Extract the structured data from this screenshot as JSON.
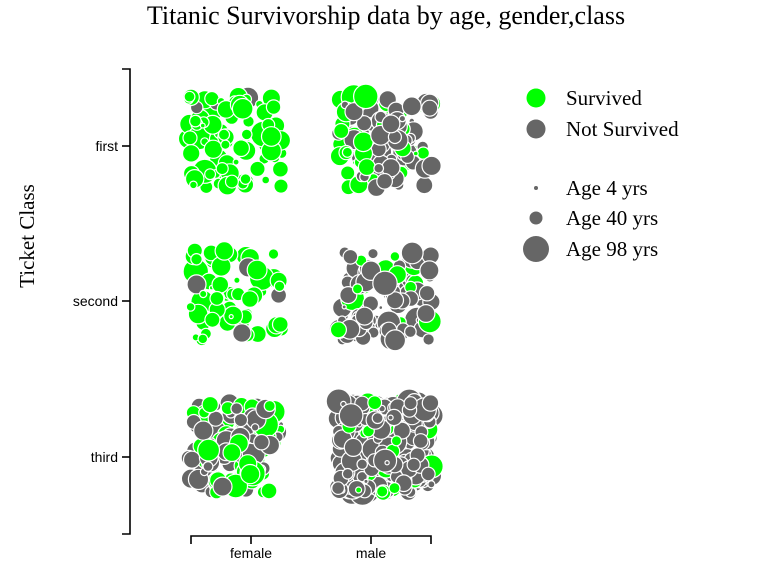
{
  "chart_data": {
    "type": "scatter",
    "title": "Titanic Survivorship data by age, gender,class",
    "ylabel": "Ticket Class",
    "xlabel": "",
    "x_categories": [
      "female",
      "male"
    ],
    "y_categories": [
      "first",
      "second",
      "third"
    ],
    "grid": false,
    "legend_position": "top-right",
    "colors": {
      "survived": "#00ff00",
      "not_survived": "#666666"
    },
    "series": [
      {
        "name": "Survived",
        "color": "#00ff00"
      },
      {
        "name": "Not Survived",
        "color": "#666666"
      }
    ],
    "size_legend": [
      {
        "label": "Age 4 yrs",
        "age": 4
      },
      {
        "label": "Age 40 yrs",
        "age": 40
      },
      {
        "label": "Age 98 yrs",
        "age": 98
      }
    ],
    "groups": [
      {
        "gender": "female",
        "class": "first",
        "survived": 90,
        "not_survived": 3
      },
      {
        "gender": "male",
        "class": "first",
        "survived": 45,
        "not_survived": 75
      },
      {
        "gender": "female",
        "class": "second",
        "survived": 70,
        "not_survived": 6
      },
      {
        "gender": "male",
        "class": "second",
        "survived": 15,
        "not_survived": 90
      },
      {
        "gender": "female",
        "class": "third",
        "survived": 72,
        "not_survived": 72
      },
      {
        "gender": "male",
        "class": "third",
        "survived": 45,
        "not_survived": 300
      }
    ]
  }
}
